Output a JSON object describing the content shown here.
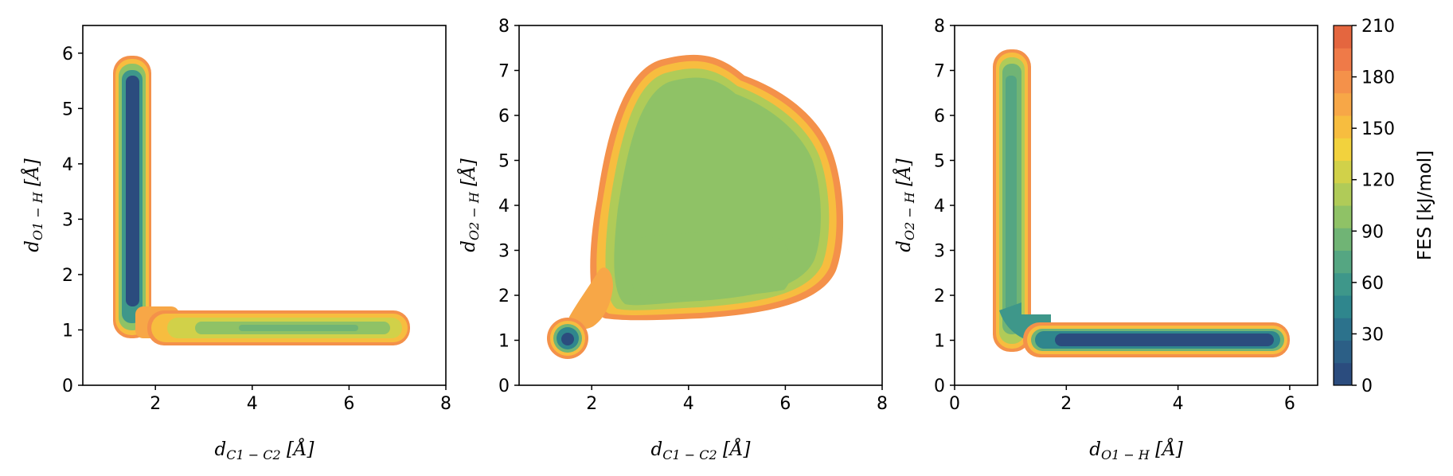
{
  "chart_data": [
    {
      "type": "heatmap",
      "xlabel": "d_{C1-C2} [Å]",
      "ylabel": "d_{O1-H} [Å]",
      "xlim": [
        0.5,
        8
      ],
      "ylim": [
        0,
        6.5
      ],
      "xticks": [
        "2",
        "4",
        "6",
        "8"
      ],
      "yticks": [
        "0",
        "1",
        "2",
        "3",
        "4",
        "5",
        "6"
      ],
      "xlabel_parts": {
        "base": "d",
        "sub": "C1 − C2",
        "unit": " [Å]"
      },
      "ylabel_parts": {
        "base": "d",
        "sub": "O1 − H",
        "unit": " [Å]"
      },
      "regions": [
        {
          "shape": "vertical-band",
          "x": 1.6,
          "y_range": [
            1.1,
            5.6
          ],
          "fes_min": 0
        },
        {
          "shape": "horizontal-band",
          "y": 1.0,
          "x_range": [
            1.6,
            7.0
          ],
          "fes_min": 90
        },
        {
          "shape": "corner",
          "x": 1.9,
          "y": 1.1,
          "fes_min": 150
        }
      ]
    },
    {
      "type": "heatmap",
      "xlabel": "d_{C1-C2} [Å]",
      "ylabel": "d_{O2-H} [Å]",
      "xlim": [
        0.5,
        8
      ],
      "ylim": [
        0,
        8
      ],
      "xticks": [
        "2",
        "4",
        "6",
        "8"
      ],
      "yticks": [
        "0",
        "1",
        "2",
        "3",
        "4",
        "5",
        "6",
        "7",
        "8"
      ],
      "xlabel_parts": {
        "base": "d",
        "sub": "C1 − C2",
        "unit": " [Å]"
      },
      "ylabel_parts": {
        "base": "d",
        "sub": "O2 − H",
        "unit": " [Å]"
      },
      "regions": [
        {
          "shape": "large-blob",
          "x_range": [
            2.8,
            7.0
          ],
          "y_range": [
            1.5,
            7.2
          ],
          "fes_min": 90
        },
        {
          "shape": "small-well",
          "x": 1.55,
          "y": 0.95,
          "fes_min": 0
        }
      ]
    },
    {
      "type": "heatmap",
      "xlabel": "d_{O1-H} [Å]",
      "ylabel": "d_{O2-H} [Å]",
      "xlim": [
        0,
        6.5
      ],
      "ylim": [
        0,
        8
      ],
      "xticks": [
        "0",
        "2",
        "4",
        "6"
      ],
      "yticks": [
        "0",
        "1",
        "2",
        "3",
        "4",
        "5",
        "6",
        "7",
        "8"
      ],
      "xlabel_parts": {
        "base": "d",
        "sub": "O1 − H",
        "unit": " [Å]"
      },
      "ylabel_parts": {
        "base": "d",
        "sub": "O2 − H",
        "unit": " [Å]"
      },
      "regions": [
        {
          "shape": "vertical-band",
          "x": 1.0,
          "y_range": [
            1.2,
            7.2
          ],
          "fes_min": 60
        },
        {
          "shape": "horizontal-band",
          "y": 0.98,
          "x_range": [
            1.8,
            5.6
          ],
          "fes_min": 0
        }
      ]
    }
  ],
  "colorbar": {
    "label": "FES [kJ/mol]",
    "range": [
      0,
      210
    ],
    "ticks": [
      "0",
      "30",
      "60",
      "90",
      "120",
      "150",
      "180",
      "210"
    ],
    "levels": [
      "#2b4c7e",
      "#2c5f86",
      "#2c728c",
      "#2f868d",
      "#3e978a",
      "#55a682",
      "#70b475",
      "#8fc266",
      "#b0cb58",
      "#d1d149",
      "#f2d23d",
      "#f7bd3f",
      "#f7a747",
      "#f4914a",
      "#ef7a48",
      "#e4663f"
    ]
  }
}
